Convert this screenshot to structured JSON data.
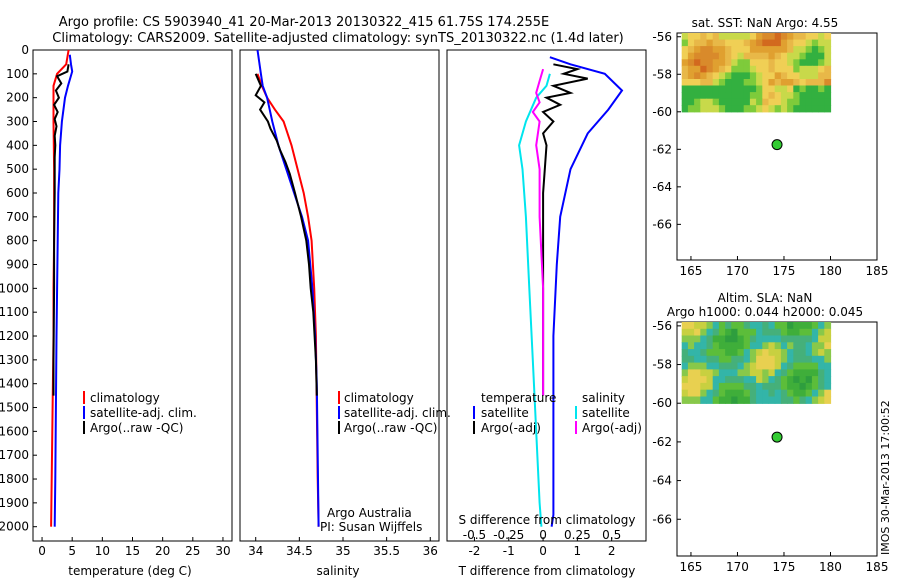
{
  "title": {
    "line1": "Argo profile: CS 5903940_41 20-Mar-2013 20130322_415 61.75S 174.255E",
    "line2": "Climatology: CARS2009. Satellite-adjusted climatology: synTS_20130322.nc (1.4d later)"
  },
  "colors": {
    "climatology": "#ff0000",
    "satellite": "#0000ff",
    "argo": "#000000",
    "sal_satellite": "#00e5ee",
    "sal_argo": "#ff00ff",
    "argo_dot": "#33cc33"
  },
  "depth_ticks": [
    "0",
    "100",
    "200",
    "300",
    "400",
    "500",
    "600",
    "700",
    "800",
    "900",
    "1000",
    "1100",
    "1200",
    "1300",
    "1400",
    "1500",
    "1600",
    "1700",
    "1800",
    "1900",
    "2000"
  ],
  "chart_data": [
    {
      "id": "temperature",
      "type": "line",
      "xlabel": "temperature (deg C)",
      "xticks": [
        "0",
        "5",
        "10",
        "15",
        "20",
        "25",
        "30"
      ],
      "xlim": [
        -1.5,
        31.5
      ],
      "ylim": [
        2060,
        0
      ],
      "legend": [
        "climatology",
        "satellite-adj. clim.",
        "Argo(..raw -QC)"
      ],
      "series": [
        {
          "name": "climatology",
          "color": "#ff0000",
          "x": [
            4.4,
            4.0,
            2.5,
            1.9,
            1.9,
            1.9,
            2.0,
            2.0,
            1.9,
            1.9,
            1.8,
            1.7,
            1.6,
            1.5
          ],
          "y": [
            0,
            60,
            100,
            150,
            200,
            300,
            500,
            800,
            1000,
            1200,
            1400,
            1600,
            1800,
            2000
          ]
        },
        {
          "name": "satellite-adj. clim.",
          "color": "#0000ff",
          "x": [
            4.6,
            4.8,
            5.0,
            4.3,
            3.8,
            3.3,
            3.0,
            2.9,
            2.7,
            2.6,
            2.5,
            2.4,
            2.3,
            2.2,
            2.1
          ],
          "y": [
            20,
            60,
            90,
            150,
            200,
            300,
            400,
            500,
            600,
            800,
            1000,
            1200,
            1500,
            1800,
            2000
          ]
        },
        {
          "name": "Argo(..raw -QC)",
          "color": "#000000",
          "x": [
            4.4,
            4.2,
            2.5,
            3.2,
            2.3,
            2.8,
            2.0,
            2.6,
            2.1,
            2.4,
            2.1,
            2.2,
            2.1,
            2.1,
            2.1,
            2.0,
            2.0,
            1.9,
            1.9
          ],
          "y": [
            60,
            90,
            110,
            140,
            170,
            200,
            230,
            260,
            290,
            320,
            360,
            400,
            450,
            500,
            600,
            800,
            1000,
            1300,
            1450
          ]
        }
      ]
    },
    {
      "id": "salinity",
      "type": "line",
      "xlabel": "salinity",
      "xticks": [
        "34",
        "34.5",
        "35",
        "35.5",
        "36"
      ],
      "xlim": [
        33.82,
        36.1
      ],
      "ylim": [
        2060,
        0
      ],
      "legend": [
        "climatology",
        "satellite-adj. clim.",
        "Argo(..raw -QC)"
      ],
      "series": [
        {
          "name": "climatology",
          "color": "#ff0000",
          "x": [
            34.02,
            34.07,
            34.13,
            34.22,
            34.32,
            34.41,
            34.48,
            34.55,
            34.6,
            34.64,
            34.67,
            34.69,
            34.7,
            34.71,
            34.72
          ],
          "y": [
            100,
            150,
            200,
            250,
            300,
            400,
            500,
            600,
            700,
            800,
            1000,
            1200,
            1500,
            1800,
            2000
          ]
        },
        {
          "name": "satellite-adj. clim.",
          "color": "#0000ff",
          "x": [
            34.02,
            34.04,
            34.06,
            34.08,
            34.13,
            34.19,
            34.26,
            34.35,
            34.44,
            34.53,
            34.6,
            34.65,
            34.68,
            34.7,
            34.71,
            34.72
          ],
          "y": [
            0,
            50,
            100,
            150,
            200,
            300,
            400,
            500,
            600,
            700,
            800,
            1000,
            1200,
            1400,
            1700,
            2000
          ]
        },
        {
          "name": "Argo(..raw -QC)",
          "color": "#000000",
          "x": [
            34.0,
            34.06,
            34.0,
            34.1,
            34.05,
            34.14,
            34.17,
            34.24,
            34.28,
            34.34,
            34.39,
            34.45,
            34.52,
            34.58,
            34.61,
            34.63,
            34.66,
            34.69,
            34.7
          ],
          "y": [
            100,
            150,
            190,
            220,
            250,
            300,
            330,
            380,
            420,
            470,
            520,
            600,
            700,
            800,
            900,
            1000,
            1100,
            1300,
            1450
          ]
        }
      ]
    },
    {
      "id": "difference",
      "type": "line",
      "xlabel": "T difference from climatology",
      "x2label": "S difference from climatology",
      "xticks": [
        "-2",
        "-1",
        "0",
        "1",
        "2"
      ],
      "x2ticks": [
        "-0.5",
        "-0.25",
        "0",
        "0.25",
        "0.5"
      ],
      "xlim": [
        -2.8,
        3.0
      ],
      "ylim": [
        2060,
        0
      ],
      "legend_temperature": {
        "title": "temperature",
        "items": [
          "satellite",
          "Argo(-adj)"
        ]
      },
      "legend_salinity": {
        "title": "salinity",
        "items": [
          "satellite",
          "Argo(-adj)"
        ]
      },
      "series": [
        {
          "name": "temperature satellite",
          "color": "#0000ff",
          "x": [
            0.2,
            0.8,
            1.8,
            2.3,
            1.9,
            1.3,
            0.8,
            0.5,
            0.4,
            0.3,
            0.3,
            0.3,
            0.3,
            0.25
          ],
          "y": [
            30,
            60,
            100,
            170,
            250,
            350,
            500,
            700,
            900,
            1200,
            1500,
            1800,
            1950,
            2000
          ]
        },
        {
          "name": "temperature Argo(-adj)",
          "color": "#000000",
          "x": [
            0.3,
            1.0,
            0.6,
            1.3,
            0.3,
            0.8,
            0.1,
            0.5,
            0.0,
            0.3,
            0.0,
            0.1,
            0.0,
            0.0,
            0.0
          ],
          "y": [
            60,
            80,
            100,
            120,
            150,
            180,
            200,
            230,
            260,
            300,
            350,
            400,
            600,
            900,
            1450
          ]
        },
        {
          "name": "salinity satellite",
          "color": "#00e5ee",
          "x": [
            0.2,
            0.1,
            -0.2,
            -0.5,
            -0.7,
            -0.6,
            -0.5,
            -0.4,
            -0.3,
            -0.2,
            -0.1,
            -0.05
          ],
          "y": [
            100,
            150,
            200,
            300,
            400,
            500,
            700,
            1000,
            1300,
            1600,
            1900,
            2000
          ]
        },
        {
          "name": "salinity Argo(-adj)",
          "color": "#ff00ff",
          "x": [
            0.0,
            -0.1,
            -0.2,
            -0.1,
            -0.3,
            -0.1,
            -0.2,
            -0.1,
            -0.1,
            0.0,
            0.0
          ],
          "y": [
            80,
            130,
            180,
            220,
            260,
            300,
            400,
            500,
            700,
            1000,
            1450
          ]
        }
      ]
    }
  ],
  "sst_map": {
    "title": "sat. SST: NaN Argo: 4.55",
    "xticks": [
      "165",
      "170",
      "175",
      "180",
      "185"
    ],
    "yticks": [
      "-56",
      "-58",
      "-60",
      "-62",
      "-64",
      "-66"
    ],
    "xlim": [
      163.5,
      185
    ],
    "ylim": [
      -55.8,
      -67.9
    ],
    "argo": {
      "lon": 174.255,
      "lat": -61.75
    }
  },
  "sla_map": {
    "title1": "Altim. SLA: NaN",
    "title2": "Argo h1000: 0.044 h2000: 0.045",
    "xticks": [
      "165",
      "170",
      "175",
      "180",
      "185"
    ],
    "yticks": [
      "-56",
      "-58",
      "-60",
      "-62",
      "-64",
      "-66"
    ],
    "xlim": [
      163.5,
      185
    ],
    "ylim": [
      -55.8,
      -67.9
    ],
    "argo": {
      "lon": 174.255,
      "lat": -61.75
    }
  },
  "footer": {
    "credit_line1": "Argo Australia",
    "credit_line2": "PI: Susan Wijffels",
    "timestamp": "IMOS 30-Mar-2013 17:00:52"
  }
}
